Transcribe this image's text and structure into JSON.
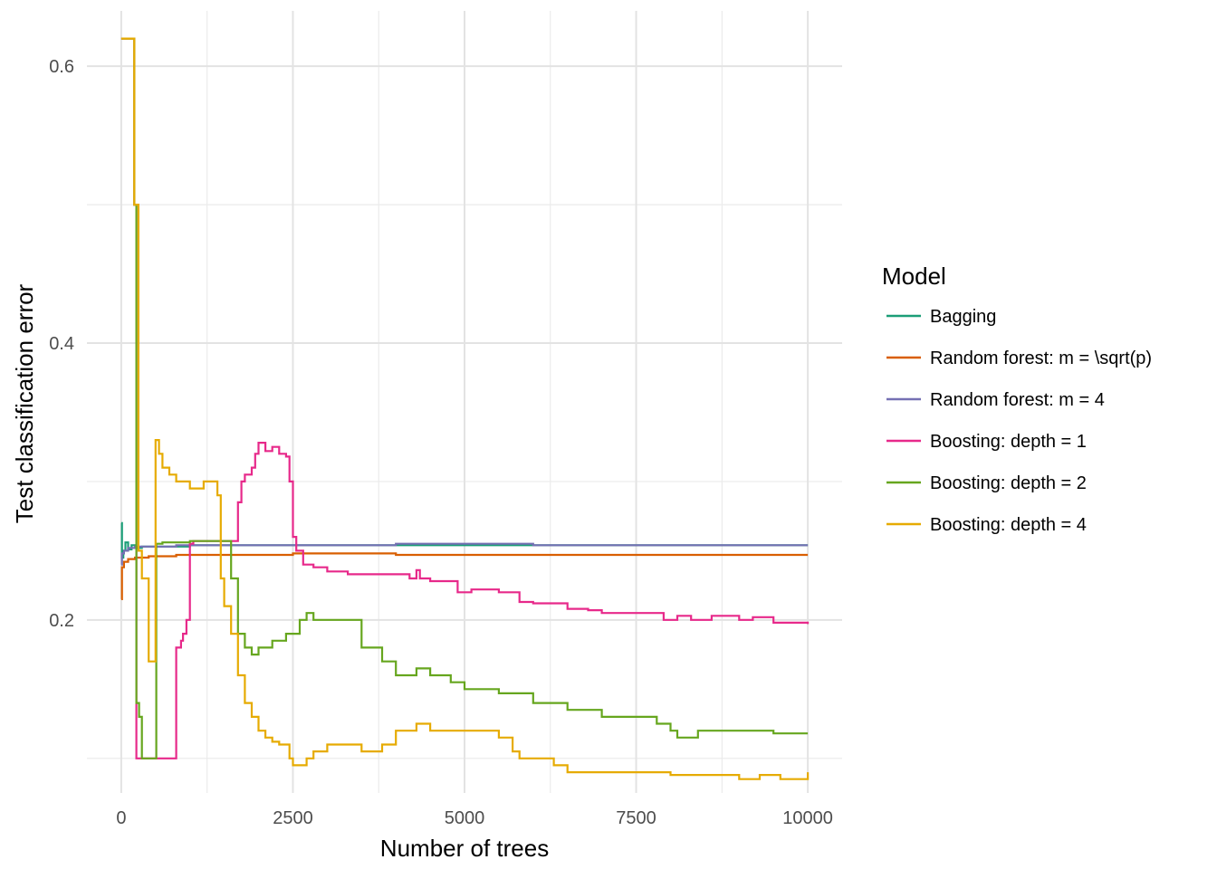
{
  "chart_data": {
    "type": "line",
    "xlabel": "Number of trees",
    "ylabel": "Test classification error",
    "xlim": [
      -500,
      10500
    ],
    "ylim": [
      0.075,
      0.64
    ],
    "x_ticks": [
      0,
      2500,
      5000,
      7500,
      10000
    ],
    "x_tick_labels": [
      "0",
      "2500",
      "5000",
      "7500",
      "10000"
    ],
    "y_ticks": [
      0.2,
      0.4,
      0.6
    ],
    "y_tick_labels": [
      "0.2",
      "0.4",
      "0.6"
    ],
    "grid": true,
    "legend": {
      "title": "Model",
      "placement": "right"
    },
    "series": [
      {
        "name": "Bagging",
        "color": "#1B9E77",
        "x": [
          0,
          10,
          30,
          60,
          100,
          150,
          200,
          300,
          500,
          1000,
          2000,
          4000,
          6000,
          8000,
          10000
        ],
        "y": [
          0.27,
          0.245,
          0.25,
          0.256,
          0.251,
          0.254,
          0.252,
          0.253,
          0.253,
          0.254,
          0.254,
          0.254,
          0.254,
          0.254,
          0.254
        ]
      },
      {
        "name": "Random forest: m = \\sqrt(p)",
        "color": "#D95F02",
        "x": [
          0,
          10,
          40,
          100,
          200,
          400,
          800,
          1500,
          2500,
          4000,
          6000,
          8000,
          10000
        ],
        "y": [
          0.215,
          0.238,
          0.242,
          0.244,
          0.245,
          0.246,
          0.247,
          0.247,
          0.248,
          0.247,
          0.247,
          0.247,
          0.247
        ]
      },
      {
        "name": "Random forest: m = 4",
        "color": "#7570B3",
        "x": [
          0,
          10,
          40,
          100,
          200,
          400,
          800,
          1500,
          2500,
          4000,
          4700,
          6000,
          8000,
          10000
        ],
        "y": [
          0.24,
          0.248,
          0.25,
          0.252,
          0.253,
          0.253,
          0.254,
          0.254,
          0.254,
          0.255,
          0.255,
          0.254,
          0.254,
          0.254
        ]
      },
      {
        "name": "Boosting: depth = 1",
        "color": "#E7298A",
        "x": [
          0,
          180,
          190,
          220,
          300,
          400,
          600,
          780,
          800,
          870,
          900,
          950,
          1000,
          1050,
          1500,
          1650,
          1700,
          1750,
          1800,
          1900,
          1950,
          2000,
          2100,
          2200,
          2300,
          2400,
          2450,
          2500,
          2550,
          2650,
          2800,
          3000,
          3300,
          3500,
          3800,
          4000,
          4200,
          4300,
          4350,
          4500,
          4900,
          5100,
          5500,
          5800,
          6000,
          6200,
          6500,
          6800,
          7000,
          7500,
          7900,
          8100,
          8300,
          8600,
          8800,
          9000,
          9200,
          9500,
          10000
        ],
        "y": [
          0.62,
          0.62,
          0.5,
          0.1,
          0.1,
          0.1,
          0.1,
          0.1,
          0.18,
          0.185,
          0.19,
          0.2,
          0.255,
          0.257,
          0.257,
          0.257,
          0.285,
          0.3,
          0.305,
          0.31,
          0.32,
          0.328,
          0.322,
          0.325,
          0.32,
          0.318,
          0.3,
          0.26,
          0.25,
          0.24,
          0.238,
          0.235,
          0.233,
          0.233,
          0.233,
          0.233,
          0.23,
          0.236,
          0.23,
          0.228,
          0.22,
          0.222,
          0.22,
          0.213,
          0.212,
          0.212,
          0.208,
          0.207,
          0.205,
          0.205,
          0.2,
          0.203,
          0.2,
          0.203,
          0.203,
          0.2,
          0.202,
          0.198,
          0.197
        ]
      },
      {
        "name": "Boosting: depth = 2",
        "color": "#66A61E",
        "x": [
          0,
          180,
          190,
          220,
          260,
          300,
          350,
          500,
          510,
          600,
          1000,
          1500,
          1600,
          1700,
          1800,
          1900,
          2000,
          2200,
          2400,
          2600,
          2700,
          2800,
          3000,
          3300,
          3500,
          3800,
          4000,
          4200,
          4300,
          4500,
          4800,
          5000,
          5500,
          6000,
          6500,
          7000,
          7500,
          7800,
          8000,
          8100,
          8400,
          9000,
          9500,
          10000
        ],
        "y": [
          0.62,
          0.62,
          0.5,
          0.14,
          0.13,
          0.1,
          0.1,
          0.1,
          0.255,
          0.256,
          0.257,
          0.257,
          0.23,
          0.19,
          0.18,
          0.175,
          0.18,
          0.185,
          0.19,
          0.2,
          0.205,
          0.2,
          0.2,
          0.2,
          0.18,
          0.17,
          0.16,
          0.16,
          0.165,
          0.16,
          0.155,
          0.15,
          0.147,
          0.14,
          0.135,
          0.13,
          0.13,
          0.125,
          0.12,
          0.115,
          0.12,
          0.12,
          0.118,
          0.118
        ]
      },
      {
        "name": "Boosting: depth = 4",
        "color": "#E6AB02",
        "x": [
          0,
          180,
          190,
          250,
          300,
          400,
          480,
          500,
          550,
          600,
          700,
          800,
          1000,
          1200,
          1300,
          1400,
          1450,
          1500,
          1600,
          1700,
          1800,
          1900,
          2000,
          2100,
          2200,
          2300,
          2400,
          2450,
          2500,
          2600,
          2700,
          2800,
          3000,
          3500,
          3800,
          4000,
          4300,
          4500,
          5000,
          5500,
          5700,
          5800,
          6000,
          6300,
          6500,
          7000,
          7500,
          8000,
          8500,
          9000,
          9300,
          9600,
          10000
        ],
        "y": [
          0.62,
          0.62,
          0.5,
          0.25,
          0.23,
          0.17,
          0.17,
          0.33,
          0.32,
          0.31,
          0.305,
          0.3,
          0.295,
          0.3,
          0.3,
          0.29,
          0.23,
          0.21,
          0.19,
          0.16,
          0.14,
          0.13,
          0.12,
          0.115,
          0.112,
          0.11,
          0.11,
          0.1,
          0.095,
          0.095,
          0.1,
          0.105,
          0.11,
          0.105,
          0.11,
          0.12,
          0.125,
          0.12,
          0.12,
          0.115,
          0.105,
          0.1,
          0.1,
          0.095,
          0.09,
          0.09,
          0.09,
          0.088,
          0.088,
          0.085,
          0.088,
          0.085,
          0.09
        ]
      }
    ]
  }
}
